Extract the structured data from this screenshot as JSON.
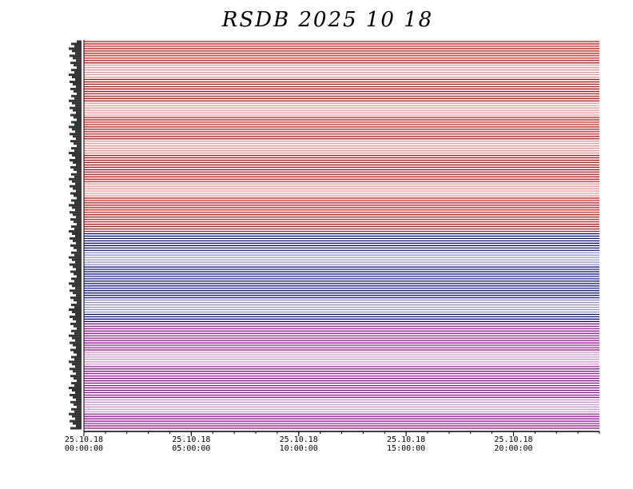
{
  "chart_data": {
    "type": "line",
    "title": "RSDB  2025  10  18",
    "xlabel": "",
    "ylabel": "",
    "x_ticks": [
      {
        "date": "25.10.18",
        "time": "00:00:00",
        "hour": 0
      },
      {
        "date": "25.10.18",
        "time": "05:00:00",
        "hour": 5
      },
      {
        "date": "25.10.18",
        "time": "10:00:00",
        "hour": 10
      },
      {
        "date": "25.10.18",
        "time": "15:00:00",
        "hour": 15
      },
      {
        "date": "25.10.18",
        "time": "20:00:00",
        "hour": 20
      }
    ],
    "x_range_hours": [
      0,
      24
    ],
    "minor_tick_interval_hours": 1,
    "series_groups": [
      {
        "color": "#dd0000",
        "line_count": 81,
        "pattern": [
          10,
          6,
          10,
          6,
          10,
          6,
          12,
          6,
          15
        ]
      },
      {
        "color": "#000099",
        "line_count": 38,
        "pattern": [
          8,
          6,
          14,
          6,
          4
        ]
      },
      {
        "color": "#990099",
        "line_count": 45,
        "pattern": [
          12,
          6,
          14,
          6,
          7
        ]
      }
    ],
    "grid": false,
    "legend": "none"
  }
}
